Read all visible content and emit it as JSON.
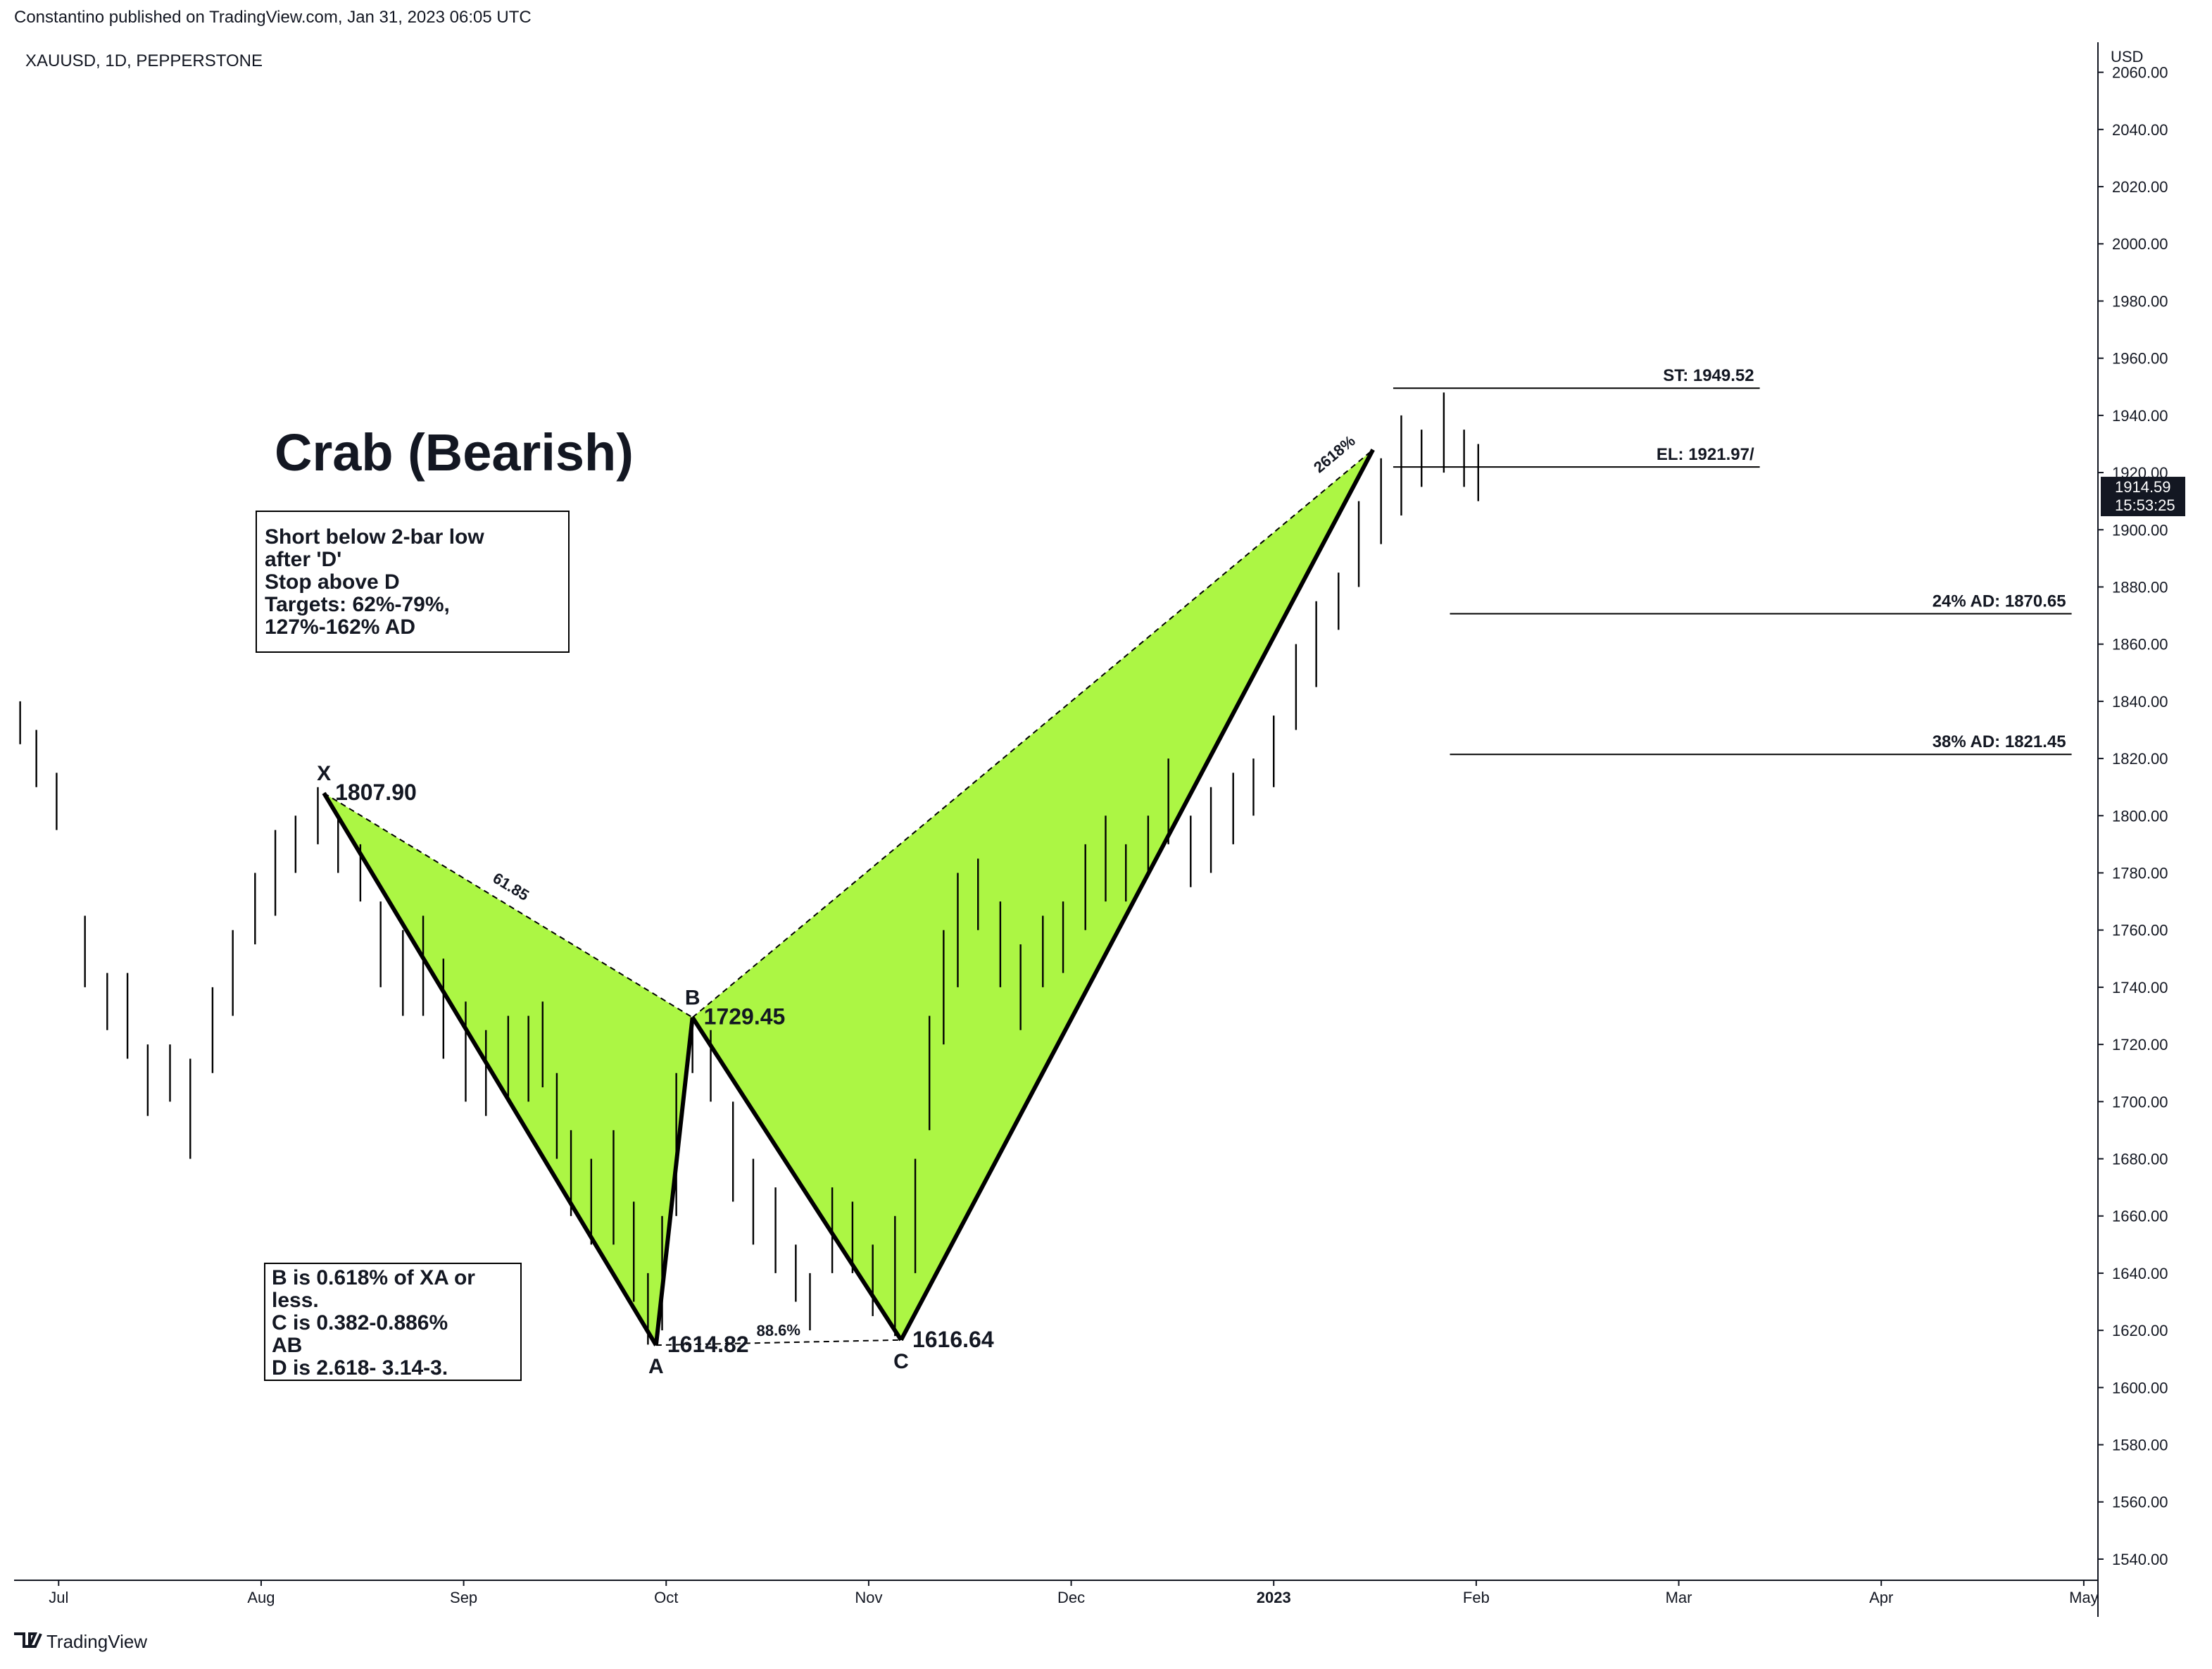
{
  "header": {
    "published": "Constantino published on TradingView.com, Jan 31, 2023 06:05 UTC",
    "symbol": "XAUUSD, 1D, PEPPERSTONE",
    "currency": "USD",
    "footer": "TradingView"
  },
  "chart_data": {
    "type": "ohlc",
    "title": "Crab (Bearish)",
    "color": "#000000",
    "xlim": [
      -0.22,
      10.07
    ],
    "ylim": [
      1532.6,
      2070.5
    ],
    "xticks": [
      {
        "value": 0,
        "label": "Jul"
      },
      {
        "value": 1,
        "label": "Aug"
      },
      {
        "value": 2,
        "label": "Sep"
      },
      {
        "value": 3,
        "label": "Oct"
      },
      {
        "value": 4,
        "label": "Nov"
      },
      {
        "value": 5,
        "label": "Dec"
      },
      {
        "value": 6,
        "label": "2023"
      },
      {
        "value": 7,
        "label": "Feb"
      },
      {
        "value": 8,
        "label": "Mar"
      },
      {
        "value": 9,
        "label": "Apr"
      },
      {
        "value": 10,
        "label": "May"
      }
    ],
    "yticks": [
      {
        "value": 1540,
        "label": "1540.00"
      },
      {
        "value": 1560,
        "label": "1560.00"
      },
      {
        "value": 1580,
        "label": "1580.00"
      },
      {
        "value": 1600,
        "label": "1600.00"
      },
      {
        "value": 1620,
        "label": "1620.00"
      },
      {
        "value": 1640,
        "label": "1640.00"
      },
      {
        "value": 1660,
        "label": "1660.00"
      },
      {
        "value": 1680,
        "label": "1680.00"
      },
      {
        "value": 1700,
        "label": "1700.00"
      },
      {
        "value": 1720,
        "label": "1720.00"
      },
      {
        "value": 1740,
        "label": "1740.00"
      },
      {
        "value": 1760,
        "label": "1760.00"
      },
      {
        "value": 1780,
        "label": "1780.00"
      },
      {
        "value": 1800,
        "label": "1800.00"
      },
      {
        "value": 1820,
        "label": "1820.00"
      },
      {
        "value": 1840,
        "label": "1840.00"
      },
      {
        "value": 1860,
        "label": "1860.00"
      },
      {
        "value": 1880,
        "label": "1880.00"
      },
      {
        "value": 1900,
        "label": "1900.00"
      },
      {
        "value": 1920,
        "label": "1920.00"
      },
      {
        "value": 1940,
        "label": "1940.00"
      },
      {
        "value": 1960,
        "label": "1960.00"
      },
      {
        "value": 1980,
        "label": "1980.00"
      },
      {
        "value": 2000,
        "label": "2000.00"
      },
      {
        "value": 2020,
        "label": "2020.00"
      },
      {
        "value": 2040,
        "label": "2040.00"
      },
      {
        "value": 2060,
        "label": "2060.00"
      }
    ],
    "bar_x": [
      -0.19,
      -0.11,
      -0.01,
      0.13,
      0.24,
      0.34,
      0.44,
      0.55,
      0.65,
      0.76,
      0.86,
      0.97,
      1.07,
      1.17,
      1.28,
      1.38,
      1.49,
      1.59,
      1.7,
      1.8,
      1.9,
      2.01,
      2.11,
      2.22,
      2.32,
      2.39,
      2.46,
      2.53,
      2.63,
      2.74,
      2.84,
      2.91,
      2.98,
      3.05,
      3.13,
      3.22,
      3.33,
      3.43,
      3.54,
      3.64,
      3.71,
      3.82,
      3.92,
      4.02,
      4.13,
      4.23,
      4.3,
      4.37,
      4.44,
      4.54,
      4.65,
      4.75,
      4.86,
      4.96,
      5.07,
      5.17,
      5.27,
      5.38,
      5.48,
      5.59,
      5.69,
      5.8,
      5.9,
      6.0,
      6.11,
      6.21,
      6.32,
      6.42,
      6.53,
      6.63,
      6.73,
      6.84,
      6.94,
      7.01
    ],
    "highs": [
      1840,
      1830,
      1815,
      1765,
      1745,
      1745,
      1720,
      1720,
      1715,
      1740,
      1760,
      1780,
      1795,
      1800,
      1810,
      1800,
      1790,
      1770,
      1760,
      1765,
      1750,
      1735,
      1725,
      1730,
      1730,
      1735,
      1710,
      1690,
      1680,
      1690,
      1665,
      1640,
      1660,
      1710,
      1729,
      1725,
      1700,
      1680,
      1670,
      1650,
      1640,
      1670,
      1665,
      1650,
      1660,
      1680,
      1730,
      1760,
      1780,
      1785,
      1770,
      1755,
      1765,
      1770,
      1790,
      1800,
      1790,
      1800,
      1820,
      1800,
      1810,
      1815,
      1820,
      1835,
      1860,
      1875,
      1885,
      1910,
      1925,
      1940,
      1935,
      1948,
      1935,
      1930
    ],
    "lows": [
      1825,
      1810,
      1795,
      1740,
      1725,
      1715,
      1695,
      1700,
      1680,
      1710,
      1730,
      1755,
      1765,
      1780,
      1790,
      1780,
      1770,
      1740,
      1730,
      1730,
      1715,
      1700,
      1695,
      1700,
      1700,
      1705,
      1680,
      1660,
      1650,
      1650,
      1630,
      1615,
      1620,
      1660,
      1710,
      1700,
      1665,
      1650,
      1640,
      1630,
      1620,
      1640,
      1640,
      1625,
      1618,
      1640,
      1690,
      1720,
      1740,
      1760,
      1740,
      1725,
      1740,
      1745,
      1760,
      1770,
      1770,
      1780,
      1790,
      1775,
      1780,
      1790,
      1800,
      1810,
      1830,
      1845,
      1865,
      1880,
      1895,
      1905,
      1915,
      1920,
      1915,
      1910
    ],
    "pattern": {
      "fill": "#a8f53a",
      "points": [
        {
          "label": "X",
          "x": 1.31,
          "value": 1807.9,
          "value_label": "1807.90"
        },
        {
          "label": "A",
          "x": 2.95,
          "value": 1614.82,
          "value_label": "1614.82"
        },
        {
          "label": "B",
          "x": 3.13,
          "value": 1729.45,
          "value_label": "1729.45"
        },
        {
          "label": "C",
          "x": 4.16,
          "value": 1616.64,
          "value_label": "1616.64"
        },
        {
          "x": 6.49,
          "value": 1928
        }
      ],
      "ratios": [
        "61.85",
        "88.6%",
        "2618%"
      ]
    },
    "levels": [
      {
        "label": "ST: 1949.52",
        "value": 1949.52,
        "x": [
          6.59,
          8.4
        ]
      },
      {
        "label": "EL: 1921.97/",
        "value": 1921.97,
        "x": [
          6.59,
          8.4
        ]
      },
      {
        "label": "24% AD: 1870.65",
        "value": 1870.65,
        "x": [
          6.87,
          9.94
        ]
      },
      {
        "label": "38% AD: 1821.45",
        "value": 1821.45,
        "x": [
          6.87,
          9.94
        ]
      }
    ],
    "notes": [
      [
        "Short below 2-bar low",
        "after 'D'",
        "Stop above D",
        "Targets: 62%-79%,",
        "127%-162% AD"
      ],
      [
        "B is  0.618%  of XA or",
        "less.",
        "C is 0.382-0.886%",
        "AB",
        "D is 2.618- 3.14-3."
      ]
    ],
    "last_price": {
      "value": 1914.59,
      "label": "1914.59",
      "time": "15:53:25"
    }
  }
}
